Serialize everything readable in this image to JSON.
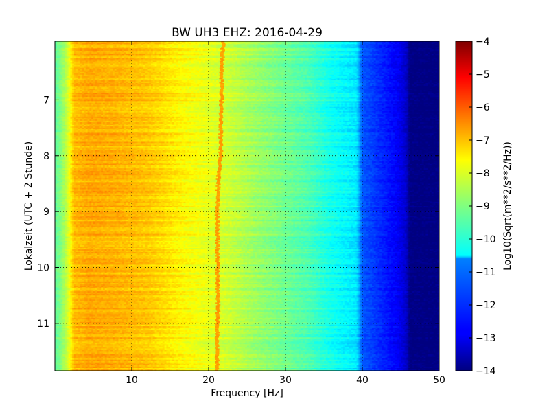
{
  "chart_data": {
    "type": "heatmap",
    "title": "BW UH3 EHZ: 2016-04-29",
    "xlabel": "Frequency [Hz]",
    "ylabel": "Lokalzeit (UTC + 2 Stunde)",
    "xlim": [
      0,
      50
    ],
    "ylim": [
      5.95,
      11.85
    ],
    "y_inverted": true,
    "grid": true,
    "x_ticks": [
      {
        "value": 10,
        "label": "10"
      },
      {
        "value": 20,
        "label": "20"
      },
      {
        "value": 30,
        "label": "30"
      },
      {
        "value": 40,
        "label": "40"
      },
      {
        "value": 50,
        "label": "50"
      }
    ],
    "y_ticks": [
      {
        "value": 7,
        "label": "7"
      },
      {
        "value": 8,
        "label": "8"
      },
      {
        "value": 9,
        "label": "9"
      },
      {
        "value": 10,
        "label": "10"
      },
      {
        "value": 11,
        "label": "11"
      }
    ],
    "colorbar": {
      "label": "Log10(Sqrt(m**2/s**2/Hz))",
      "range": [
        -14,
        -4
      ],
      "colormap": "jet",
      "ticks": [
        {
          "value": -4,
          "label": "−4"
        },
        {
          "value": -5,
          "label": "−5"
        },
        {
          "value": -6,
          "label": "−6"
        },
        {
          "value": -7,
          "label": "−7"
        },
        {
          "value": -8,
          "label": "−8"
        },
        {
          "value": -9,
          "label": "−9"
        },
        {
          "value": -10,
          "label": "−10"
        },
        {
          "value": -11,
          "label": "−11"
        },
        {
          "value": -12,
          "label": "−12"
        },
        {
          "value": -13,
          "label": "−13"
        },
        {
          "value": -14,
          "label": "−14"
        }
      ]
    },
    "frequency_profile": [
      {
        "hz": 0.0,
        "value": -9.3
      },
      {
        "hz": 0.8,
        "value": -9.0
      },
      {
        "hz": 1.8,
        "value": -8.0
      },
      {
        "hz": 2.5,
        "value": -7.1
      },
      {
        "hz": 4.5,
        "value": -6.9
      },
      {
        "hz": 8.0,
        "value": -7.0
      },
      {
        "hz": 12.0,
        "value": -7.2
      },
      {
        "hz": 14.0,
        "value": -7.4
      },
      {
        "hz": 16.5,
        "value": -7.7
      },
      {
        "hz": 19.0,
        "value": -7.9
      },
      {
        "hz": 21.0,
        "value": -8.1
      },
      {
        "hz": 23.0,
        "value": -8.3
      },
      {
        "hz": 26.0,
        "value": -8.7
      },
      {
        "hz": 29.5,
        "value": -9.1
      },
      {
        "hz": 33.0,
        "value": -9.5
      },
      {
        "hz": 36.0,
        "value": -10.1
      },
      {
        "hz": 39.3,
        "value": -10.5
      },
      {
        "hz": 40.0,
        "value": -11.9
      },
      {
        "hz": 42.0,
        "value": -12.3
      },
      {
        "hz": 44.5,
        "value": -12.8
      },
      {
        "hz": 45.8,
        "value": -13.3
      },
      {
        "hz": 46.2,
        "value": -14.0
      },
      {
        "hz": 50.0,
        "value": -14.0
      }
    ],
    "resonance_line": {
      "value": -6.8,
      "hz_by_time": [
        {
          "time": 5.95,
          "hz": 21.9
        },
        {
          "time": 6.5,
          "hz": 21.7
        },
        {
          "time": 7.0,
          "hz": 21.7
        },
        {
          "time": 7.6,
          "hz": 21.6
        },
        {
          "time": 8.0,
          "hz": 21.6
        },
        {
          "time": 8.3,
          "hz": 21.3
        },
        {
          "time": 9.0,
          "hz": 21.1
        },
        {
          "time": 10.0,
          "hz": 21.2
        },
        {
          "time": 10.8,
          "hz": 21.2
        },
        {
          "time": 11.3,
          "hz": 21.1
        },
        {
          "time": 11.85,
          "hz": 21.1
        }
      ]
    },
    "time_resolution_hours": 0.025,
    "frequency_resolution_hz": 0.25
  }
}
